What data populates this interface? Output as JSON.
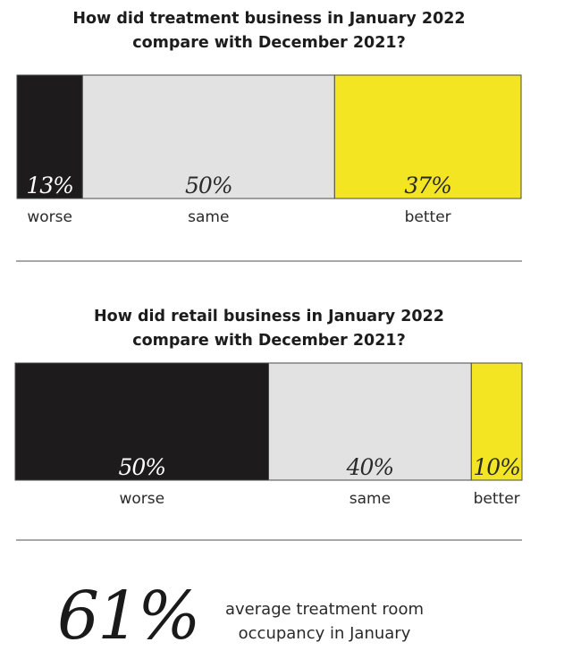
{
  "colors": {
    "worse": "#1d1b1c",
    "same": "#e2e2e2",
    "better": "#f4e523",
    "rule": "#8c8c8c"
  },
  "chart_data": [
    {
      "type": "bar",
      "stacked": "horizontal-100",
      "title_lines": [
        "How did treatment business in January 2022",
        "compare with December 2021?"
      ],
      "categories": [
        "worse",
        "same",
        "better"
      ],
      "values": [
        13,
        50,
        37
      ],
      "value_labels": [
        "13%",
        "50%",
        "37%"
      ]
    },
    {
      "type": "bar",
      "stacked": "horizontal-100",
      "title_lines": [
        "How did retail business in January 2022",
        "compare with December 2021?"
      ],
      "categories": [
        "worse",
        "same",
        "better"
      ],
      "values": [
        50,
        40,
        10
      ],
      "value_labels": [
        "50%",
        "40%",
        "10%"
      ]
    }
  ],
  "stat": {
    "value": "61%",
    "caption_lines": [
      "average treatment room",
      "occupancy in January"
    ]
  }
}
